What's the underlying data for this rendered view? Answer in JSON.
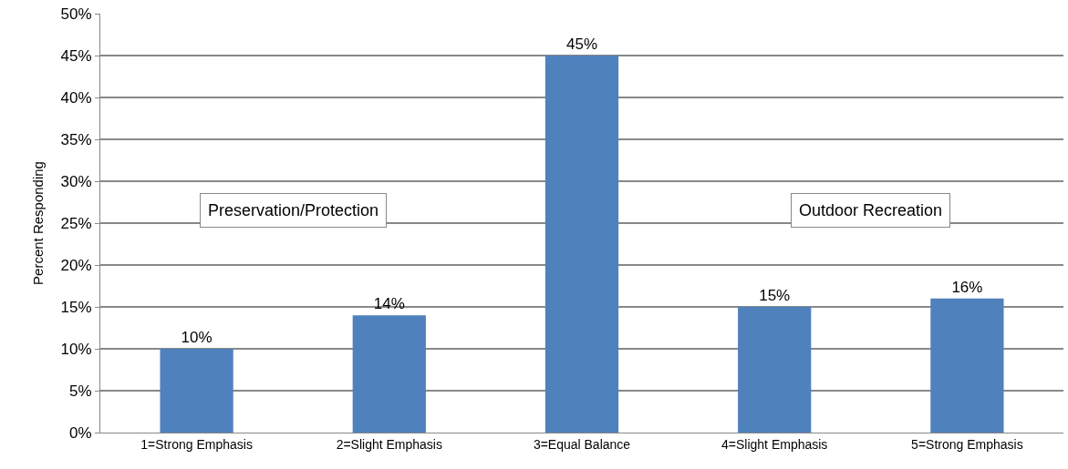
{
  "chart_data": {
    "type": "bar",
    "ylabel": "Percent Responding",
    "categories": [
      "1=Strong Emphasis",
      "2=Slight Emphasis",
      "3=Equal Balance",
      "4=Slight Emphasis",
      "5=Strong Emphasis"
    ],
    "values": [
      10,
      14,
      45,
      15,
      16
    ],
    "value_labels": [
      "10%",
      "14%",
      "45%",
      "15%",
      "16%"
    ],
    "color": "#4f81bd",
    "ylim": [
      0,
      50
    ],
    "yticks": [
      {
        "value": 0,
        "label": "0%"
      },
      {
        "value": 5,
        "label": "5%"
      },
      {
        "value": 10,
        "label": "10%"
      },
      {
        "value": 15,
        "label": "15%"
      },
      {
        "value": 20,
        "label": "20%"
      },
      {
        "value": 25,
        "label": "25%"
      },
      {
        "value": 30,
        "label": "30%"
      },
      {
        "value": 35,
        "label": "35%"
      },
      {
        "value": 40,
        "label": "40%"
      },
      {
        "value": 45,
        "label": "45%"
      },
      {
        "value": 50,
        "label": "50%"
      }
    ],
    "grid": "y",
    "legend": false,
    "annotations": [
      "Preservation/Protection",
      "Outdoor Recreation"
    ]
  }
}
